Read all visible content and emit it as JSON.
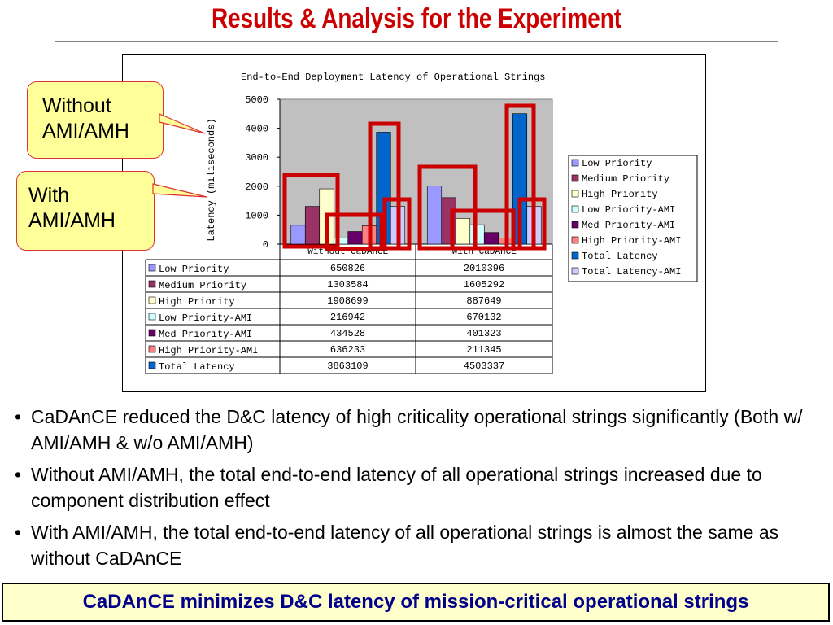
{
  "slide": {
    "title": "Results & Analysis for the Experiment",
    "callouts": [
      "Without AMI/AMH",
      "With AMI/AMH"
    ],
    "bullets": [
      "CaDAnCE reduced the D&C latency of high criticality operational strings significantly (Both w/ AMI/AMH & w/o AMI/AMH)",
      "Without AMI/AMH, the total end-to-end latency of all operational strings increased due to component distribution effect",
      "With AMI/AMH, the total end-to-end latency of all operational strings is almost the same as without CaDAnCE"
    ],
    "bullet_symbol": "•",
    "footer": "CaDAnCE minimizes D&C latency of mission-critical operational strings"
  },
  "chart_data": {
    "type": "bar",
    "title": "End-to-End Deployment Latency of Operational Strings",
    "ylabel": "Latency (miliseconds)",
    "xlabel": "",
    "ylim": [
      0,
      5000
    ],
    "yticks": [
      0,
      1000,
      2000,
      3000,
      4000,
      5000
    ],
    "grid": false,
    "legend_position": "right",
    "categories": [
      "Without CaDAnCE",
      "With CaDAnCE"
    ],
    "series": [
      {
        "name": "Low Priority",
        "color": "#9999ff",
        "values": [
          650.826,
          2010.396
        ]
      },
      {
        "name": "Medium Priority",
        "color": "#993366",
        "values": [
          1303.584,
          1605.292
        ]
      },
      {
        "name": "High Priority",
        "color": "#ffffcc",
        "values": [
          1908.699,
          887.649
        ]
      },
      {
        "name": "Low Priority-AMI",
        "color": "#ccffff",
        "values": [
          216.942,
          670.132
        ]
      },
      {
        "name": "Med Priority-AMI",
        "color": "#660066",
        "values": [
          434.528,
          401.323
        ]
      },
      {
        "name": "High Priority-AMI",
        "color": "#ff8080",
        "values": [
          636.233,
          211.345
        ]
      },
      {
        "name": "Total Latency",
        "color": "#0066cc",
        "values": [
          3863.109,
          4503.337
        ]
      },
      {
        "name": "Total Latency-AMI",
        "color": "#ccccff",
        "values": [
          1300,
          1300
        ]
      }
    ],
    "table": {
      "rows": [
        {
          "label": "Low Priority",
          "values": [
            "650826",
            "2010396"
          ]
        },
        {
          "label": "Medium Priority",
          "values": [
            "1303584",
            "1605292"
          ]
        },
        {
          "label": "High Priority",
          "values": [
            "1908699",
            "887649"
          ]
        },
        {
          "label": "Low Priority-AMI",
          "values": [
            "216942",
            "670132"
          ]
        },
        {
          "label": "Med Priority-AMI",
          "values": [
            "434528",
            "401323"
          ]
        },
        {
          "label": "High Priority-AMI",
          "values": [
            "636233",
            "211345"
          ]
        },
        {
          "label": "Total Latency",
          "values": [
            "3863109",
            "4503337"
          ]
        }
      ]
    },
    "highlight_color": "#cc0000"
  }
}
